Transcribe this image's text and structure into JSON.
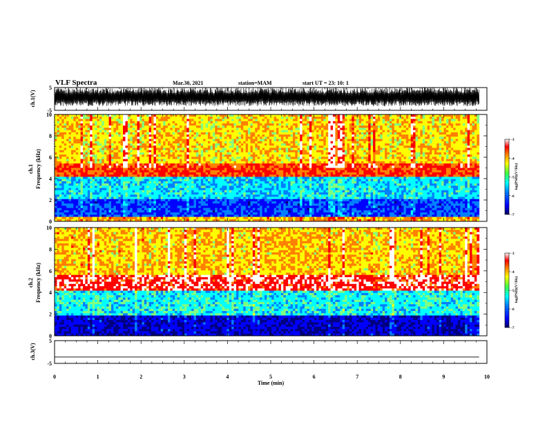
{
  "header": {
    "title": "VLF Spectra",
    "date": "Mar.30, 2021",
    "station": "station=MAM",
    "start_ut": "start  UT =   23: 10: 1"
  },
  "colors": {
    "colormap": [
      "#00007f",
      "#0000ff",
      "#0080ff",
      "#00ffff",
      "#80ff80",
      "#ffff00",
      "#ff8000",
      "#ff0000",
      "#ffffff"
    ],
    "trace": "#000000"
  },
  "chart_data": [
    {
      "type": "line",
      "name_label": "ch.1(V)",
      "xlim": [
        0,
        10
      ],
      "ylim": [
        -5,
        5
      ],
      "yticks": [
        "5",
        "-5"
      ],
      "description_values": "dense waveform spanning approximately -3 to 5 V over 0–9.8 min"
    },
    {
      "type": "heatmap",
      "ylabel_channel": "ch.1",
      "ylabel": "Frequency (kHz)",
      "xlim": [
        0,
        10
      ],
      "ylim": [
        0,
        10
      ],
      "yticks": [
        "0",
        "2",
        "4",
        "6",
        "8",
        "10"
      ],
      "data_x_extent": [
        0,
        9.82
      ],
      "bands": [
        {
          "from_khz": 0,
          "to_khz": 0.5,
          "log_psd": -4.2
        },
        {
          "from_khz": 0.5,
          "to_khz": 2,
          "log_psd": -6.3
        },
        {
          "from_khz": 2,
          "to_khz": 4.2,
          "log_psd": -5.6
        },
        {
          "from_khz": 4.2,
          "to_khz": 5.5,
          "log_psd": -3.7
        },
        {
          "from_khz": 5.5,
          "to_khz": 10,
          "log_psd": -4.4
        }
      ],
      "colorbar": {
        "label": "log(PSD)(V²/Hz)",
        "min": -7,
        "max": -3,
        "ticks": [
          "-3",
          "-4",
          "-5",
          "-6",
          "-7"
        ]
      }
    },
    {
      "type": "heatmap",
      "ylabel_channel": "ch.2",
      "ylabel": "Frequency (kHz)",
      "xlim": [
        0,
        10
      ],
      "ylim": [
        0,
        10
      ],
      "yticks": [
        "0",
        "2",
        "4",
        "6",
        "8",
        "10"
      ],
      "data_x_extent": [
        0,
        9.82
      ],
      "bands": [
        {
          "from_khz": 0,
          "to_khz": 1.8,
          "log_psd": -6.7
        },
        {
          "from_khz": 1.8,
          "to_khz": 4.2,
          "log_psd": -5.5
        },
        {
          "from_khz": 4.2,
          "to_khz": 5.7,
          "log_psd": -3.4
        },
        {
          "from_khz": 5.7,
          "to_khz": 10,
          "log_psd": -4.3
        }
      ],
      "colorbar": {
        "label": "log(PSD)(V²/Hz)",
        "min": -7,
        "max": -3,
        "ticks": [
          "-3",
          "-4",
          "-5",
          "-6",
          "-7"
        ]
      }
    },
    {
      "type": "line",
      "name_label": "ch.3(V)",
      "xlim": [
        0,
        10
      ],
      "ylim": [
        -5,
        5
      ],
      "yticks": [
        "5",
        "-5"
      ],
      "x": [
        0,
        9.82
      ],
      "y": [
        -2.2,
        -2.2
      ]
    }
  ],
  "xaxis": {
    "label": "Time  (min)",
    "ticks": [
      "0",
      "1",
      "2",
      "3",
      "4",
      "5",
      "6",
      "7",
      "8",
      "9",
      "10"
    ]
  }
}
